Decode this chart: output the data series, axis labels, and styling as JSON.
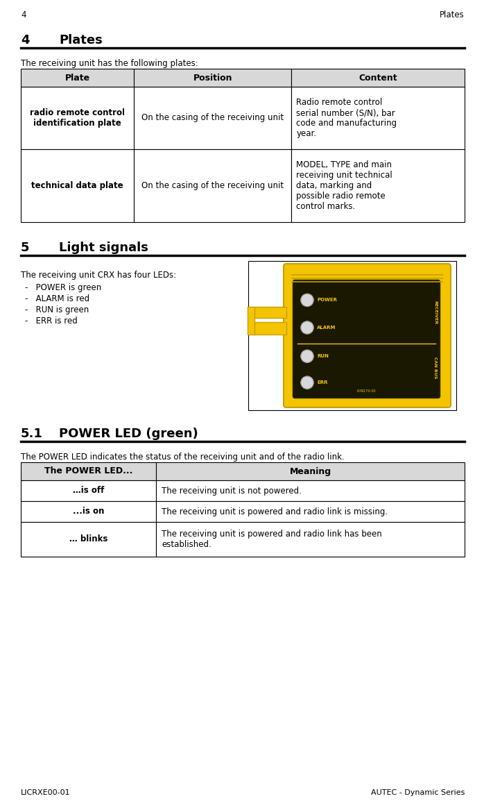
{
  "page_num": "4",
  "page_title_right": "Plates",
  "footer_left": "LICRXE00-01",
  "footer_right": "AUTEC - Dynamic Series",
  "section4_num": "4",
  "section4_title": "Plates",
  "section4_intro": "The receiving unit has the following plates:",
  "table1_headers": [
    "Plate",
    "Position",
    "Content"
  ],
  "table1_rows": [
    {
      "plate": "radio remote control\nidentification plate",
      "position": "On the casing of the receiving unit",
      "content": "Radio remote control\nserial number (S/N), bar\ncode and manufacturing\nyear."
    },
    {
      "plate": "technical data plate",
      "position": "On the casing of the receiving unit",
      "content": "MODEL, TYPE and main\nreceiving unit technical\ndata, marking and\npossible radio remote\ncontrol marks."
    }
  ],
  "section5_num": "5",
  "section5_title": "Light signals",
  "section5_intro": "The receiving unit CRX has four LEDs:",
  "section5_bullets": [
    "POWER is green",
    "ALARM is red",
    "RUN is green",
    "ERR is red"
  ],
  "section51_num": "5.1",
  "section51_title": "POWER LED (green)",
  "section51_intro": "The POWER LED indicates the status of the receiving unit and of the radio link.",
  "table2_headers": [
    "The POWER LED...",
    "Meaning"
  ],
  "table2_rows": [
    {
      "led": "…is off",
      "meaning": "The receiving unit is not powered."
    },
    {
      "led": "...is on",
      "meaning": "The receiving unit is powered and radio link is missing."
    },
    {
      "led": "… blinks",
      "meaning": "The receiving unit is powered and radio link has been\nestablished."
    }
  ],
  "bg_color": "#ffffff",
  "text_color": "#000000",
  "table_header_bg": "#d8d8d8",
  "font_size_body": 8.5,
  "font_size_header": 9,
  "font_size_section": 13,
  "font_size_footer": 8,
  "yellow": "#f5c400",
  "yellow_dark": "#c8a000",
  "dark_panel": "#1a1800"
}
